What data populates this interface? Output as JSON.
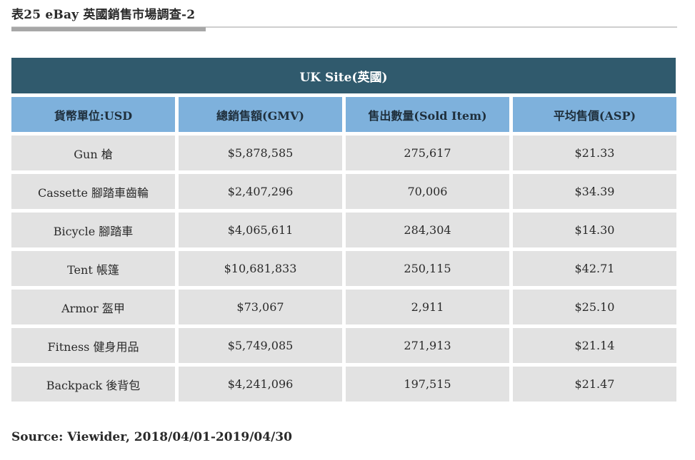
{
  "caption": "表25 eBay 英國銷售市場調查-2",
  "table": {
    "banner": "UK Site(英國)",
    "headers": [
      "貨幣單位:USD",
      "總銷售額(GMV)",
      "售出數量(Sold Item)",
      "平均售價(ASP)"
    ],
    "rows": [
      [
        "Gun 槍",
        "$5,878,585",
        "275,617",
        "$21.33"
      ],
      [
        "Cassette 腳踏車齒輪",
        "$2,407,296",
        "70,006",
        "$34.39"
      ],
      [
        "Bicycle 腳踏車",
        "$4,065,611",
        "284,304",
        "$14.30"
      ],
      [
        "Tent 帳篷",
        "$10,681,833",
        "250,115",
        "$42.71"
      ],
      [
        "Armor 盔甲",
        "$73,067",
        "2,911",
        "$25.10"
      ],
      [
        "Fitness 健身用品",
        "$5,749,085",
        "271,913",
        "$21.14"
      ],
      [
        "Backpack 後背包",
        "$4,241,096",
        "197,515",
        "$21.47"
      ]
    ]
  },
  "source": "Source: Viewider, 2018/04/01-2019/04/30",
  "colors": {
    "banner": "#305a6d",
    "header": "#7eb1dc",
    "cell": "#e2e2e2",
    "accent_rule": "#a7a7a7"
  }
}
